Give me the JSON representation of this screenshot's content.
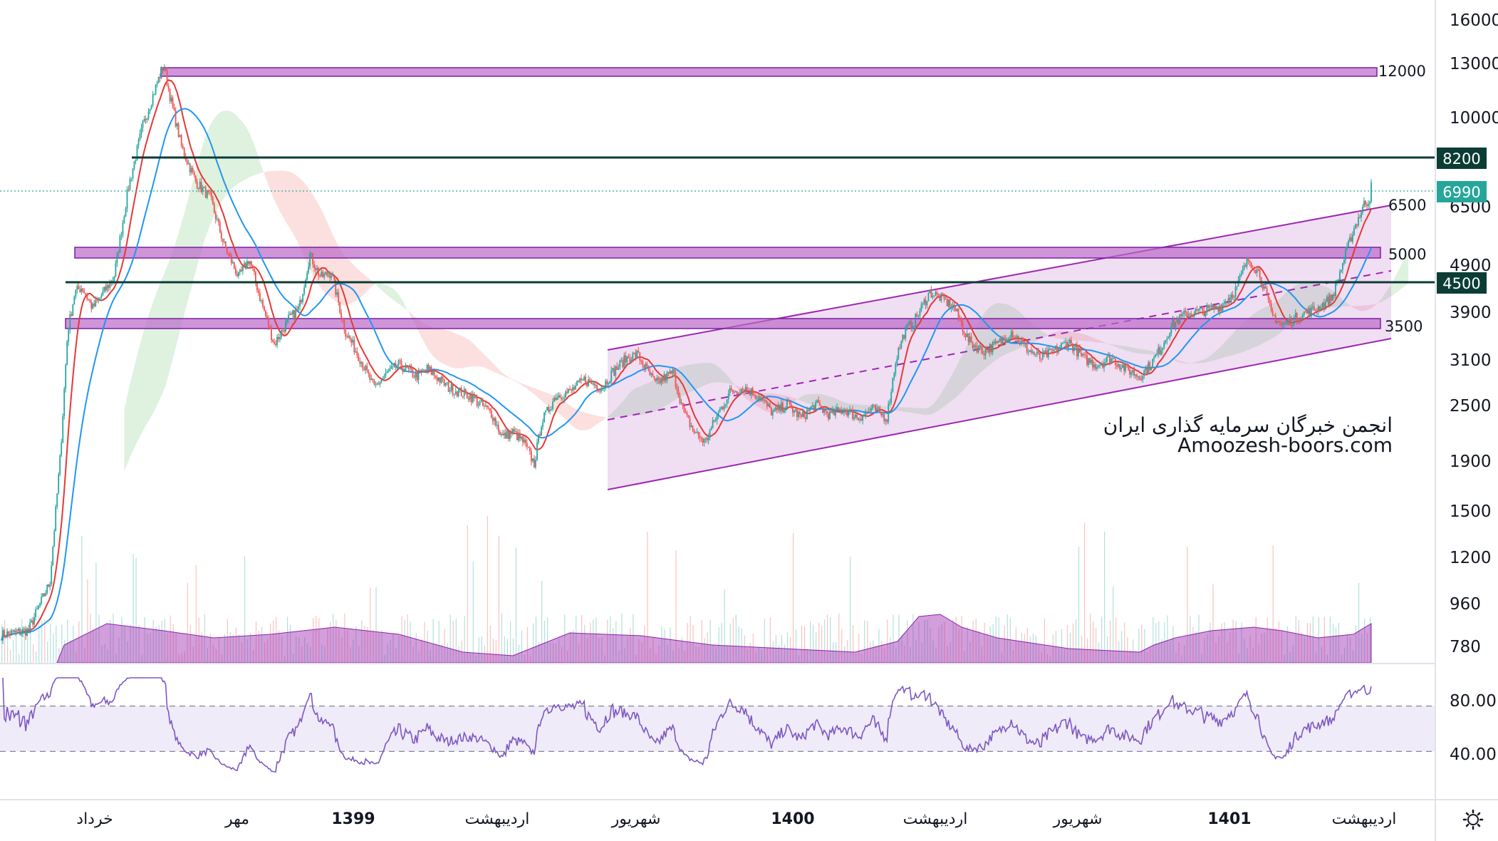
{
  "chart_data": {
    "type": "candlestick",
    "price_axis": {
      "scale": "log",
      "ticks": [
        "16000",
        "13000",
        "10000",
        "6500",
        "4900",
        "3900",
        "3100",
        "2500",
        "1900",
        "1500",
        "1200",
        "960",
        "780"
      ]
    },
    "rsi_axis": {
      "ticks": [
        "80.00",
        "40.00"
      ],
      "upper_band": 70,
      "lower_band": 30
    },
    "time_axis": [
      {
        "label": "خرداد",
        "bold": false
      },
      {
        "label": "مهر",
        "bold": false
      },
      {
        "label": "1399",
        "bold": true
      },
      {
        "label": "اردیبهشت",
        "bold": false
      },
      {
        "label": "شهریور",
        "bold": false
      },
      {
        "label": "1400",
        "bold": true
      },
      {
        "label": "اردیبهشت",
        "bold": false
      },
      {
        "label": "شهریور",
        "bold": false
      },
      {
        "label": "1401",
        "bold": true
      },
      {
        "label": "اردیبهشت",
        "bold": false
      }
    ],
    "zones": [
      {
        "label": "12000",
        "price": 12000
      },
      {
        "label": "5000",
        "price": 5000
      },
      {
        "label": "3500",
        "price": 3500
      }
    ],
    "lines": [
      {
        "label": "8200",
        "price": 8200
      },
      {
        "label": "4500",
        "price": 4500
      }
    ],
    "current_price": {
      "label": "6990",
      "value": 6990
    },
    "channel_label": "6500",
    "watermark": [
      "انجمن خبرگان سرمایه گذاری ایران",
      "Amoozesh-boors.com"
    ],
    "colors": {
      "up": "#26a69a",
      "down": "#ef5350",
      "ma_fast": "#e53935",
      "ma_slow": "#2196f3",
      "zone": "#ce93d8",
      "channel": "#9c27b0",
      "level_line": "#0b3d35",
      "rsi": "#7e57c2"
    }
  },
  "toolbar": {
    "settings_icon": "gear-icon"
  }
}
